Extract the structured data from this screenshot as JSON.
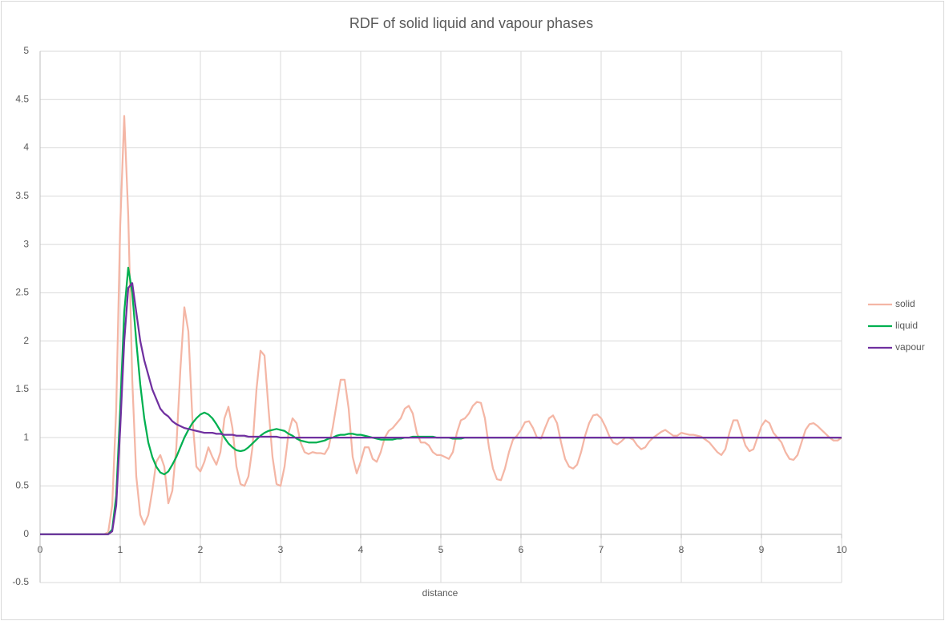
{
  "chart_data": {
    "type": "line",
    "title": "RDF of solid liquid and vapour phases",
    "x_label": "distance",
    "x": [
      0,
      0.05,
      0.1,
      0.15,
      0.2,
      0.25,
      0.3,
      0.35,
      0.4,
      0.45,
      0.5,
      0.55,
      0.6,
      0.65,
      0.7,
      0.75,
      0.8,
      0.85,
      0.9,
      0.95,
      1,
      1.05,
      1.1,
      1.15,
      1.2,
      1.25,
      1.3,
      1.35,
      1.4,
      1.45,
      1.5,
      1.55,
      1.6,
      1.65,
      1.7,
      1.75,
      1.8,
      1.85,
      1.9,
      1.95,
      2,
      2.05,
      2.1,
      2.15,
      2.2,
      2.25,
      2.3,
      2.35,
      2.4,
      2.45,
      2.5,
      2.55,
      2.6,
      2.65,
      2.7,
      2.75,
      2.8,
      2.85,
      2.9,
      2.95,
      3,
      3.05,
      3.1,
      3.15,
      3.2,
      3.25,
      3.3,
      3.35,
      3.4,
      3.45,
      3.5,
      3.55,
      3.6,
      3.65,
      3.7,
      3.75,
      3.8,
      3.85,
      3.9,
      3.95,
      4,
      4.05,
      4.1,
      4.15,
      4.2,
      4.25,
      4.3,
      4.35,
      4.4,
      4.45,
      4.5,
      4.55,
      4.6,
      4.65,
      4.7,
      4.75,
      4.8,
      4.85,
      4.9,
      4.95,
      5,
      5.05,
      5.1,
      5.15,
      5.2,
      5.25,
      5.3,
      5.35,
      5.4,
      5.45,
      5.5,
      5.55,
      5.6,
      5.65,
      5.7,
      5.75,
      5.8,
      5.85,
      5.9,
      5.95,
      6,
      6.05,
      6.1,
      6.15,
      6.2,
      6.25,
      6.3,
      6.35,
      6.4,
      6.45,
      6.5,
      6.55,
      6.6,
      6.65,
      6.7,
      6.75,
      6.8,
      6.85,
      6.9,
      6.95,
      7,
      7.05,
      7.1,
      7.15,
      7.2,
      7.25,
      7.3,
      7.35,
      7.4,
      7.45,
      7.5,
      7.55,
      7.6,
      7.65,
      7.7,
      7.75,
      7.8,
      7.85,
      7.9,
      7.95,
      8,
      8.05,
      8.1,
      8.15,
      8.2,
      8.25,
      8.3,
      8.35,
      8.4,
      8.45,
      8.5,
      8.55,
      8.6,
      8.65,
      8.7,
      8.75,
      8.8,
      8.85,
      8.9,
      8.95,
      9,
      9.05,
      9.1,
      9.15,
      9.2,
      9.25,
      9.3,
      9.35,
      9.4,
      9.45,
      9.5,
      9.55,
      9.6,
      9.65,
      9.7,
      9.75,
      9.8,
      9.85,
      9.9,
      9.95,
      10
    ],
    "series": [
      {
        "name": "solid",
        "color": "#f4b6a5",
        "values": [
          0,
          0,
          0,
          0,
          0,
          0,
          0,
          0,
          0,
          0,
          0,
          0,
          0,
          0,
          0,
          0,
          0,
          0.02,
          0.3,
          1.3,
          3.2,
          4.33,
          3.3,
          1.6,
          0.6,
          0.2,
          0.1,
          0.2,
          0.45,
          0.75,
          0.82,
          0.7,
          0.32,
          0.45,
          0.9,
          1.7,
          2.35,
          2.1,
          1.2,
          0.7,
          0.65,
          0.75,
          0.9,
          0.8,
          0.72,
          0.85,
          1.2,
          1.32,
          1.1,
          0.7,
          0.52,
          0.5,
          0.6,
          0.9,
          1.5,
          1.9,
          1.85,
          1.3,
          0.8,
          0.52,
          0.5,
          0.7,
          1.05,
          1.2,
          1.15,
          0.95,
          0.85,
          0.83,
          0.85,
          0.84,
          0.84,
          0.83,
          0.9,
          1.1,
          1.35,
          1.6,
          1.6,
          1.3,
          0.8,
          0.63,
          0.75,
          0.9,
          0.9,
          0.78,
          0.75,
          0.85,
          1.0,
          1.07,
          1.1,
          1.15,
          1.2,
          1.3,
          1.33,
          1.25,
          1.05,
          0.95,
          0.95,
          0.92,
          0.85,
          0.82,
          0.82,
          0.8,
          0.78,
          0.85,
          1.05,
          1.18,
          1.2,
          1.25,
          1.33,
          1.37,
          1.36,
          1.2,
          0.9,
          0.68,
          0.57,
          0.56,
          0.68,
          0.85,
          0.98,
          1.02,
          1.08,
          1.16,
          1.17,
          1.1,
          1.0,
          0.99,
          1.1,
          1.2,
          1.23,
          1.15,
          0.95,
          0.78,
          0.7,
          0.68,
          0.72,
          0.85,
          1.02,
          1.15,
          1.23,
          1.24,
          1.2,
          1.12,
          1.02,
          0.95,
          0.93,
          0.96,
          1.0,
          1.0,
          0.98,
          0.92,
          0.88,
          0.9,
          0.96,
          1.0,
          1.03,
          1.06,
          1.08,
          1.05,
          1.02,
          1.02,
          1.05,
          1.04,
          1.03,
          1.03,
          1.02,
          1.01,
          0.98,
          0.95,
          0.9,
          0.85,
          0.82,
          0.88,
          1.05,
          1.18,
          1.18,
          1.05,
          0.92,
          0.86,
          0.88,
          1.0,
          1.12,
          1.18,
          1.15,
          1.05,
          1.0,
          0.95,
          0.85,
          0.78,
          0.77,
          0.82,
          0.95,
          1.08,
          1.14,
          1.15,
          1.12,
          1.08,
          1.04,
          1.0,
          0.97,
          0.97,
          1.0
        ]
      },
      {
        "name": "liquid",
        "color": "#00b050",
        "values": [
          0,
          0,
          0,
          0,
          0,
          0,
          0,
          0,
          0,
          0,
          0,
          0,
          0,
          0,
          0,
          0,
          0,
          0,
          0.05,
          0.4,
          1.3,
          2.3,
          2.76,
          2.5,
          2.0,
          1.55,
          1.2,
          0.95,
          0.8,
          0.7,
          0.64,
          0.62,
          0.65,
          0.72,
          0.8,
          0.9,
          1.0,
          1.08,
          1.15,
          1.2,
          1.24,
          1.26,
          1.24,
          1.2,
          1.14,
          1.07,
          1.0,
          0.94,
          0.9,
          0.87,
          0.86,
          0.87,
          0.9,
          0.94,
          0.98,
          1.02,
          1.05,
          1.07,
          1.08,
          1.09,
          1.08,
          1.07,
          1.04,
          1.02,
          0.99,
          0.97,
          0.96,
          0.95,
          0.95,
          0.95,
          0.96,
          0.97,
          0.99,
          1.0,
          1.02,
          1.03,
          1.03,
          1.04,
          1.04,
          1.03,
          1.03,
          1.02,
          1.01,
          1.0,
          0.99,
          0.98,
          0.98,
          0.98,
          0.98,
          0.99,
          0.99,
          1.0,
          1.0,
          1.01,
          1.01,
          1.01,
          1.01,
          1.01,
          1.01,
          1.0,
          1.0,
          1.0,
          1.0,
          0.99,
          0.99,
          0.99,
          1.0,
          1.0,
          1.0,
          1.0,
          1.0,
          1.0,
          1.0,
          1.0,
          1.0,
          1.0,
          1.0,
          1.0,
          1.0,
          1.0,
          1.0,
          1.0,
          1.0,
          1.0,
          1.0,
          1.0,
          1.0,
          1.0,
          1.0,
          1.0,
          1.0,
          1.0,
          1.0,
          1.0,
          1.0,
          1.0,
          1.0,
          1.0,
          1.0,
          1.0,
          1.0,
          1.0,
          1.0,
          1.0,
          1.0,
          1.0,
          1.0,
          1.0,
          1.0,
          1.0,
          1.0,
          1.0,
          1.0,
          1.0,
          1.0,
          1.0,
          1.0,
          1.0,
          1.0,
          1.0,
          1.0,
          1.0,
          1.0,
          1.0,
          1.0,
          1.0,
          1.0,
          1.0,
          1.0,
          1.0,
          1.0,
          1.0,
          1.0,
          1.0,
          1.0,
          1.0,
          1.0,
          1.0,
          1.0,
          1.0,
          1.0,
          1.0,
          1.0,
          1.0,
          1.0,
          1.0,
          1.0,
          1.0,
          1.0,
          1.0,
          1.0,
          1.0,
          1.0,
          1.0,
          1.0,
          1.0,
          1.0,
          1.0,
          1.0,
          1.0,
          1.0
        ]
      },
      {
        "name": "vapour",
        "color": "#7030a0",
        "values": [
          0,
          0,
          0,
          0,
          0,
          0,
          0,
          0,
          0,
          0,
          0,
          0,
          0,
          0,
          0,
          0,
          0,
          0,
          0.03,
          0.3,
          1.1,
          2.0,
          2.55,
          2.6,
          2.3,
          2.0,
          1.8,
          1.65,
          1.5,
          1.4,
          1.3,
          1.25,
          1.22,
          1.17,
          1.14,
          1.12,
          1.1,
          1.09,
          1.08,
          1.07,
          1.06,
          1.05,
          1.05,
          1.05,
          1.04,
          1.04,
          1.03,
          1.03,
          1.03,
          1.02,
          1.02,
          1.02,
          1.01,
          1.01,
          1.01,
          1.01,
          1.01,
          1.01,
          1.01,
          1.01,
          1.0,
          1.0,
          1.0,
          1.0,
          1.0,
          1.0,
          1.0,
          1.0,
          1.0,
          1.0,
          1.0,
          1.0,
          1.0,
          1.0,
          1.0,
          1.0,
          1.0,
          1.0,
          1.0,
          1.0,
          1.0,
          1.0,
          1.0,
          1.0,
          1.0,
          1.0,
          1.0,
          1.0,
          1.0,
          1.0,
          1.0,
          1.0,
          1.0,
          1.0,
          1.0,
          1.0,
          1.0,
          1.0,
          1.0,
          1.0,
          1.0,
          1.0,
          1.0,
          1.0,
          1.0,
          1.0,
          1.0,
          1.0,
          1.0,
          1.0,
          1.0,
          1.0,
          1.0,
          1.0,
          1.0,
          1.0,
          1.0,
          1.0,
          1.0,
          1.0,
          1.0,
          1.0,
          1.0,
          1.0,
          1.0,
          1.0,
          1.0,
          1.0,
          1.0,
          1.0,
          1.0,
          1.0,
          1.0,
          1.0,
          1.0,
          1.0,
          1.0,
          1.0,
          1.0,
          1.0,
          1.0,
          1.0,
          1.0,
          1.0,
          1.0,
          1.0,
          1.0,
          1.0,
          1.0,
          1.0,
          1.0,
          1.0,
          1.0,
          1.0,
          1.0,
          1.0,
          1.0,
          1.0,
          1.0,
          1.0,
          1.0,
          1.0,
          1.0,
          1.0,
          1.0,
          1.0,
          1.0,
          1.0,
          1.0,
          1.0,
          1.0,
          1.0,
          1.0,
          1.0,
          1.0,
          1.0,
          1.0,
          1.0,
          1.0,
          1.0,
          1.0,
          1.0,
          1.0,
          1.0,
          1.0,
          1.0,
          1.0,
          1.0,
          1.0,
          1.0,
          1.0,
          1.0,
          1.0,
          1.0,
          1.0,
          1.0,
          1.0,
          1.0,
          1.0,
          1.0,
          1.0
        ]
      }
    ],
    "xlim": [
      0,
      10
    ],
    "xticks": [
      0,
      1,
      2,
      3,
      4,
      5,
      6,
      7,
      8,
      9,
      10
    ],
    "ylim": [
      -0.5,
      5
    ],
    "yticks": [
      -0.5,
      0,
      0.5,
      1,
      1.5,
      2,
      2.5,
      3,
      3.5,
      4,
      4.5,
      5
    ],
    "grid": true,
    "legend": "right"
  }
}
